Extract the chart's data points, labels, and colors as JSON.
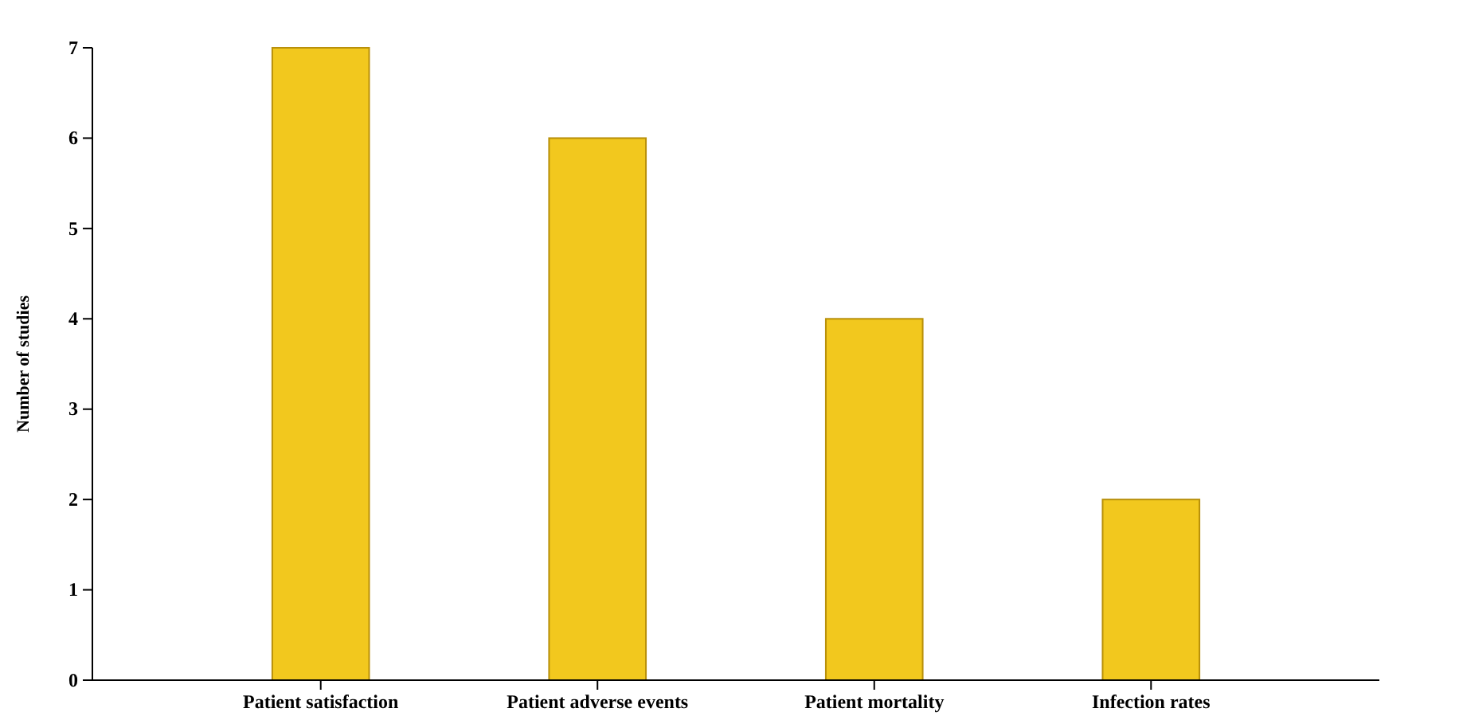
{
  "chart_data": {
    "type": "bar",
    "ylabel": "Number of studies",
    "categories": [
      "Patient satisfaction",
      "Patient adverse events",
      "Patient mortality",
      "Infection rates"
    ],
    "values": [
      7,
      6,
      4,
      2
    ],
    "color": "#f2c81e",
    "ylim": [
      0,
      7
    ],
    "yticks": [
      0,
      1,
      2,
      3,
      4,
      5,
      6,
      7
    ],
    "grid": false
  }
}
